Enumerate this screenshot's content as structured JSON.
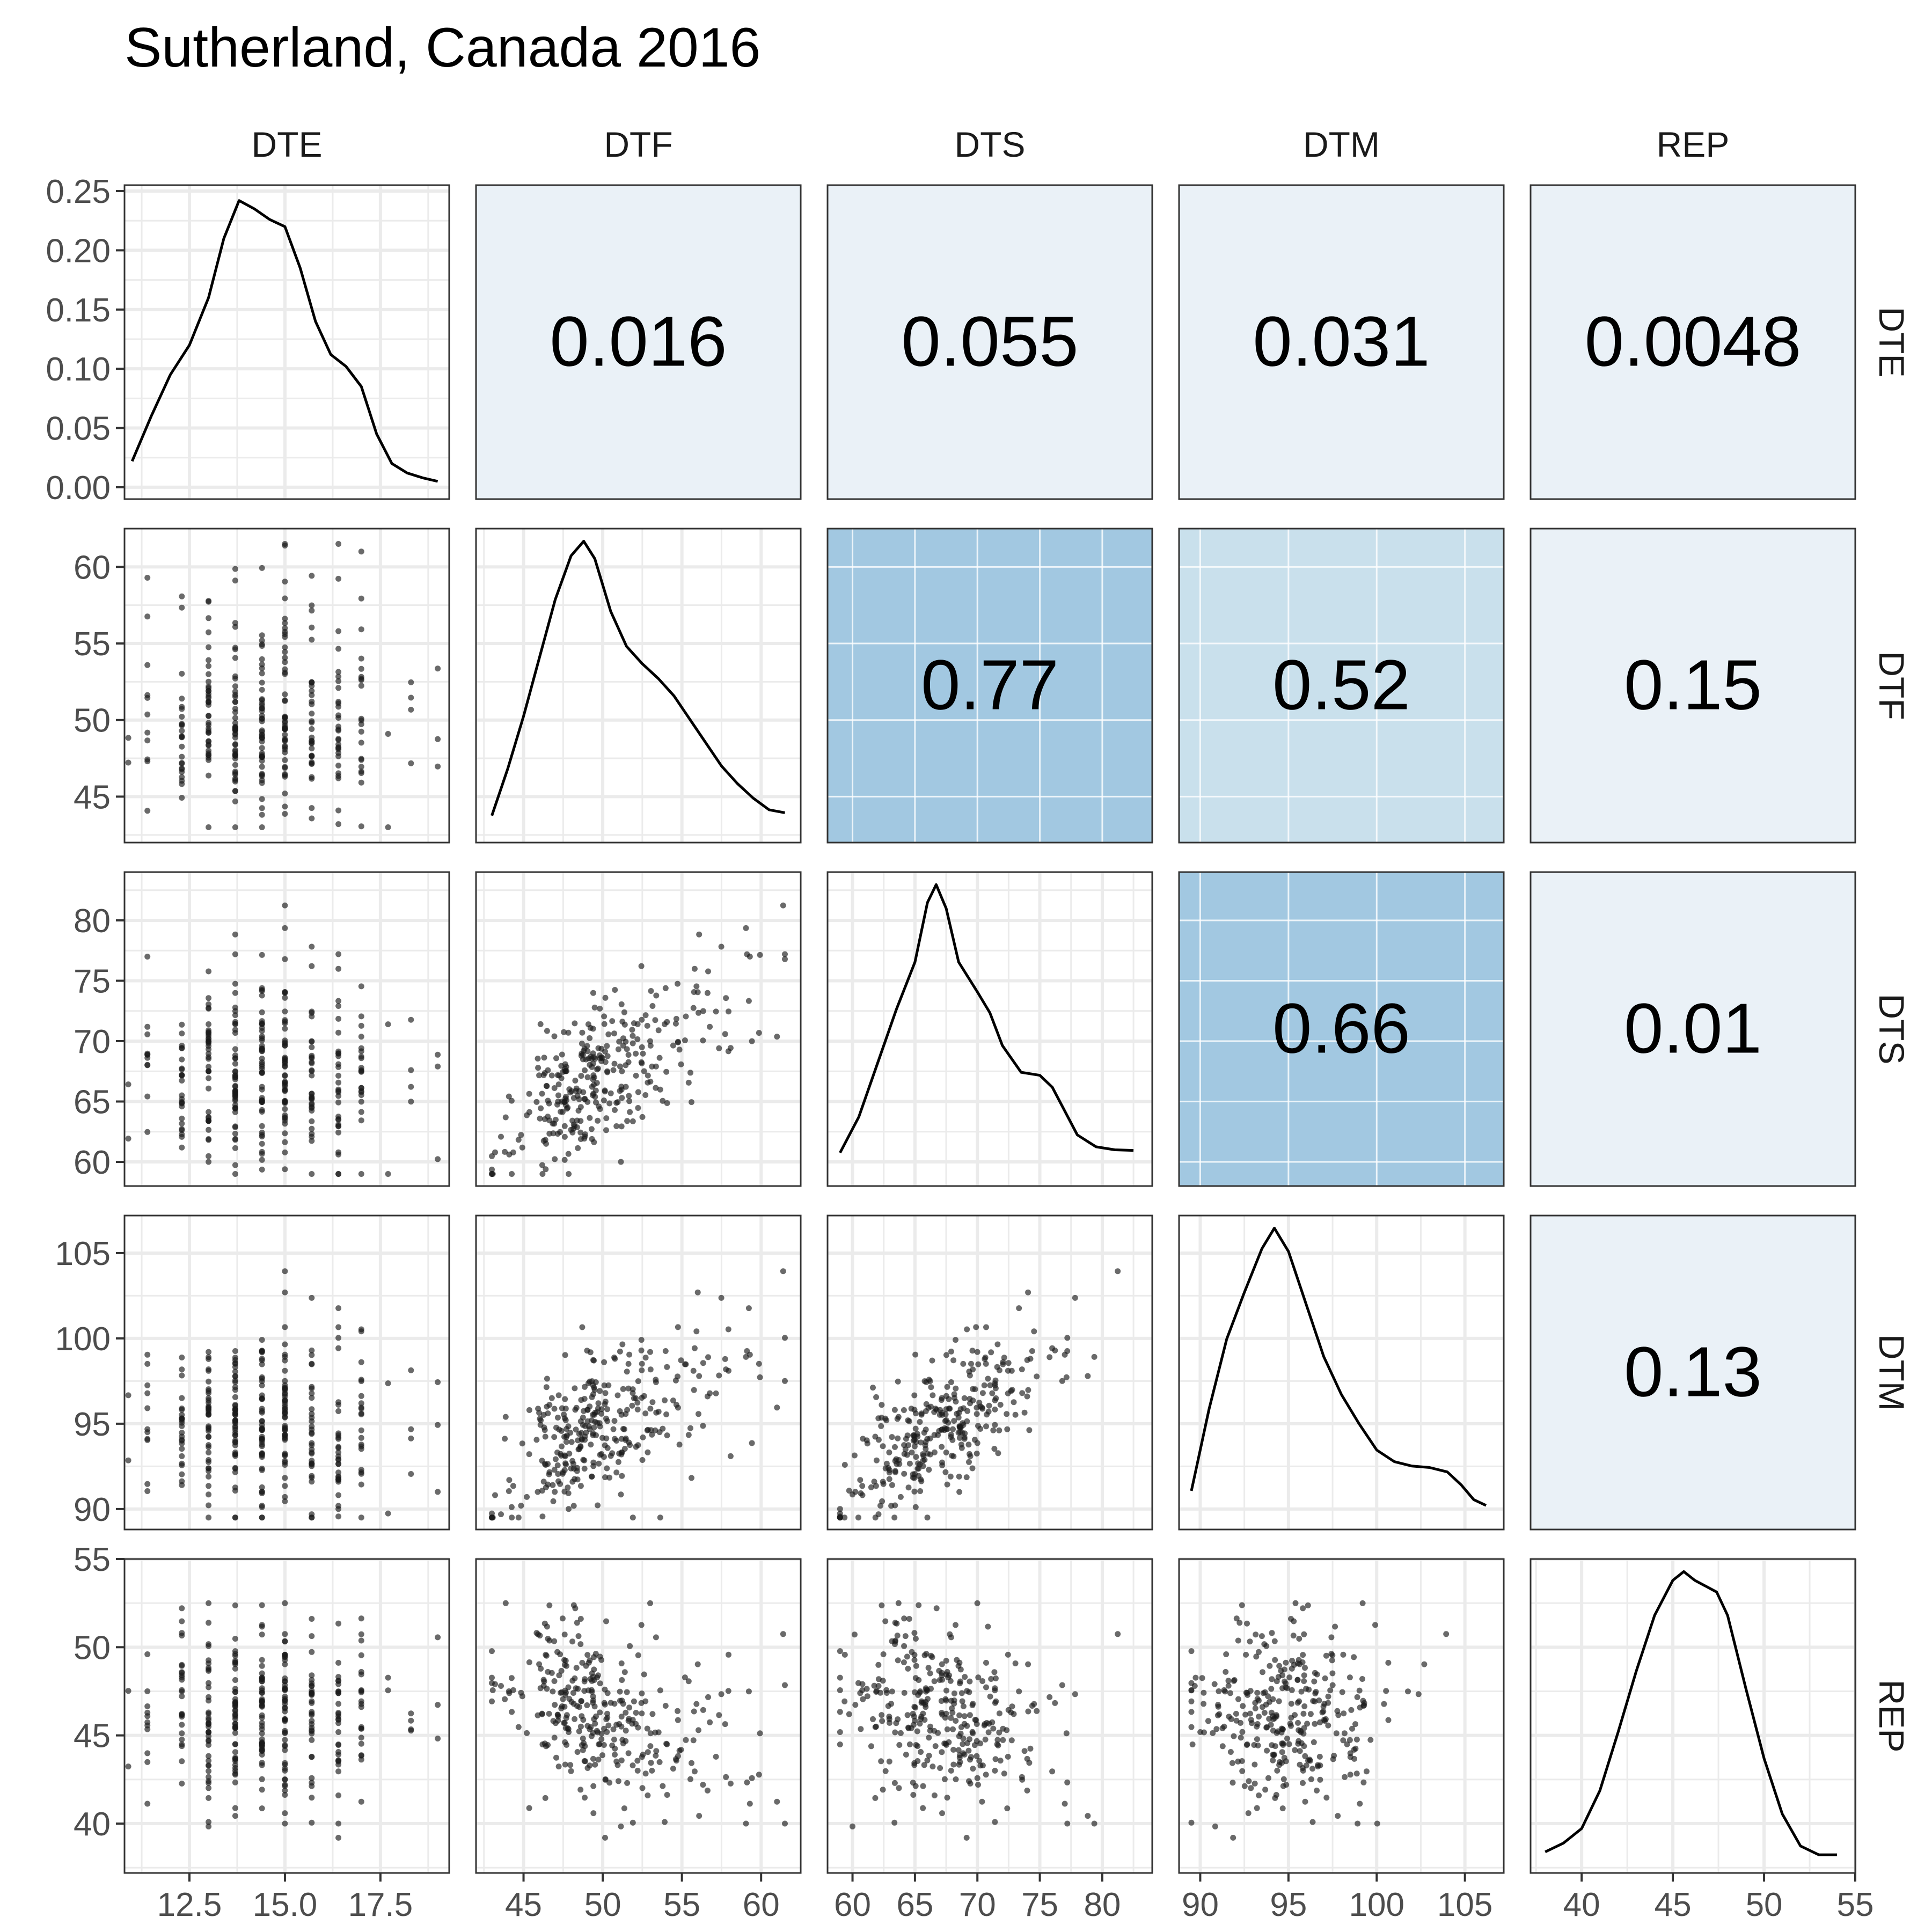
{
  "title": "Sutherland, Canada 2016",
  "variables": [
    "DTE",
    "DTF",
    "DTS",
    "DTM",
    "REP"
  ],
  "colors": {
    "panel_border": "#333333",
    "grid": "#ebebeb",
    "cor_weak": "#eaf1f7",
    "cor_medium": "#c9e0ec",
    "cor_strong": "#a2c8e1",
    "points": "#1a1a1a",
    "density_line": "#000000"
  },
  "chart_data": {
    "type": "scatter-matrix",
    "variables": [
      "DTE",
      "DTF",
      "DTS",
      "DTM",
      "REP"
    ],
    "axes": {
      "DTE": {
        "range": [
          10.8,
          19.3
        ],
        "ticks": [
          12.5,
          15.0,
          17.5
        ],
        "tick_labels": [
          "12.5",
          "15.0",
          "17.5"
        ]
      },
      "DTF": {
        "range": [
          42.0,
          62.5
        ],
        "ticks": [
          45,
          50,
          55,
          60
        ],
        "tick_labels": [
          "45",
          "50",
          "55",
          "60"
        ]
      },
      "DTS": {
        "range": [
          58.0,
          84.0
        ],
        "ticks": [
          60,
          65,
          70,
          75,
          80
        ],
        "tick_labels": [
          "60",
          "65",
          "70",
          "75",
          "80"
        ]
      },
      "DTM": {
        "range": [
          88.8,
          107.2
        ],
        "ticks": [
          90,
          95,
          100,
          105
        ],
        "tick_labels": [
          "90",
          "95",
          "100",
          "105"
        ]
      },
      "REP": {
        "range": [
          37.2,
          55.0
        ],
        "ticks": [
          40,
          45,
          50,
          55
        ],
        "tick_labels": [
          "40",
          "45",
          "50",
          "55"
        ]
      }
    },
    "density_y_axis": {
      "range": [
        -0.01,
        0.255
      ],
      "ticks": [
        0,
        0.05,
        0.1,
        0.15,
        0.2,
        0.25
      ],
      "tick_labels": [
        "0.00",
        "0.05",
        "0.10",
        "0.15",
        "0.20",
        "0.25"
      ]
    },
    "correlations": [
      {
        "row": "DTE",
        "col": "DTF",
        "value": "0.016",
        "strength": "weak"
      },
      {
        "row": "DTE",
        "col": "DTS",
        "value": "0.055",
        "strength": "weak"
      },
      {
        "row": "DTE",
        "col": "DTM",
        "value": "0.031",
        "strength": "weak"
      },
      {
        "row": "DTE",
        "col": "REP",
        "value": "0.0048",
        "strength": "weak"
      },
      {
        "row": "DTF",
        "col": "DTS",
        "value": "0.77",
        "strength": "strong"
      },
      {
        "row": "DTF",
        "col": "DTM",
        "value": "0.52",
        "strength": "medium"
      },
      {
        "row": "DTF",
        "col": "REP",
        "value": "0.15",
        "strength": "weak"
      },
      {
        "row": "DTS",
        "col": "DTM",
        "value": "0.66",
        "strength": "strong"
      },
      {
        "row": "DTS",
        "col": "REP",
        "value": "0.01",
        "strength": "weak"
      },
      {
        "row": "DTM",
        "col": "REP",
        "value": "0.13",
        "strength": "weak"
      }
    ],
    "densities": {
      "DTE": {
        "x": [
          11.0,
          11.5,
          12.0,
          12.5,
          13.0,
          13.4,
          13.8,
          14.2,
          14.6,
          15.0,
          15.4,
          15.8,
          16.2,
          16.6,
          17.0,
          17.4,
          17.8,
          18.2,
          18.6,
          19.0
        ],
        "y": [
          0.022,
          0.06,
          0.095,
          0.12,
          0.16,
          0.21,
          0.242,
          0.235,
          0.226,
          0.22,
          0.185,
          0.14,
          0.112,
          0.102,
          0.085,
          0.045,
          0.02,
          0.012,
          0.008,
          0.005
        ]
      },
      "DTF": {
        "x": [
          43,
          44,
          45,
          46,
          47,
          48,
          48.8,
          49.5,
          50.5,
          51.5,
          52.5,
          53.5,
          54.5,
          55.5,
          56.5,
          57.5,
          58.5,
          59.5,
          60.5,
          61.5
        ],
        "y": [
          0.03,
          0.11,
          0.2,
          0.3,
          0.4,
          0.475,
          0.5,
          0.47,
          0.38,
          0.32,
          0.29,
          0.265,
          0.235,
          0.195,
          0.155,
          0.115,
          0.085,
          0.06,
          0.04,
          0.035
        ]
      },
      "DTS": {
        "x": [
          59,
          60.5,
          62,
          63.5,
          65,
          66,
          66.7,
          67.5,
          68.5,
          70,
          71,
          72,
          73.5,
          75,
          76,
          77,
          78,
          79.5,
          81,
          82.5
        ],
        "y": [
          0.08,
          0.2,
          0.38,
          0.56,
          0.72,
          0.92,
          0.98,
          0.9,
          0.72,
          0.62,
          0.55,
          0.44,
          0.35,
          0.34,
          0.3,
          0.22,
          0.14,
          0.1,
          0.09,
          0.088
        ]
      },
      "DTM": {
        "x": [
          89.5,
          90.5,
          91.5,
          92.5,
          93.5,
          94.2,
          95,
          96,
          97,
          98,
          99,
          100,
          101,
          102,
          103,
          104,
          104.8,
          105.5,
          106.2
        ],
        "y": [
          0.1,
          0.38,
          0.62,
          0.78,
          0.93,
          1.0,
          0.92,
          0.74,
          0.56,
          0.43,
          0.33,
          0.24,
          0.2,
          0.185,
          0.18,
          0.165,
          0.12,
          0.07,
          0.05
        ]
      },
      "REP": {
        "x": [
          38,
          39,
          40,
          41,
          42,
          43,
          44,
          45,
          45.6,
          46.2,
          46.8,
          47.4,
          48,
          49,
          50,
          51,
          52,
          53,
          54
        ],
        "y": [
          0.04,
          0.07,
          0.12,
          0.25,
          0.45,
          0.66,
          0.85,
          0.97,
          1.0,
          0.97,
          0.95,
          0.93,
          0.85,
          0.6,
          0.36,
          0.17,
          0.06,
          0.03,
          0.03
        ]
      }
    },
    "scatter_structure": {
      "DTE_levels": [
        10.9,
        11.4,
        12.3,
        13.0,
        13.7,
        14.4,
        15.0,
        15.7,
        16.4,
        17.0,
        17.7,
        18.3,
        19.0
      ],
      "DTF": {
        "mean": 49.5,
        "sd": 3.6,
        "min": 43.0,
        "max": 61.5
      },
      "DTS": {
        "mean": 67.5,
        "sd": 4.6,
        "min": 59.0,
        "max": 83.0
      },
      "DTM": {
        "mean": 94.8,
        "sd": 3.4,
        "min": 89.5,
        "max": 106.5
      },
      "REP": {
        "mean": 46.0,
        "sd": 3.0,
        "min": 38.0,
        "max": 54.5
      },
      "n_points": 320
    },
    "grid": true,
    "legend": "none"
  }
}
